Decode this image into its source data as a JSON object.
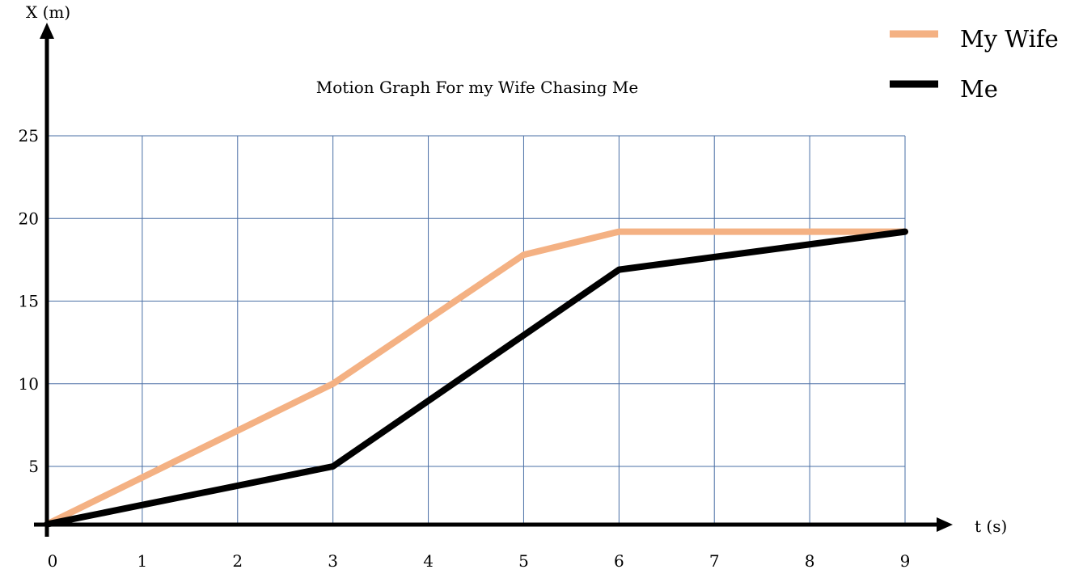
{
  "chart_data": {
    "type": "line",
    "title": "Motion Graph For my Wife Chasing Me",
    "xlabel": "t (s)",
    "ylabel": "X (m)",
    "x_ticks": [
      0,
      1,
      2,
      3,
      4,
      5,
      6,
      7,
      8,
      9
    ],
    "y_ticks": [
      5,
      10,
      15,
      20,
      25
    ],
    "xlim": [
      0,
      9
    ],
    "ylim": [
      1.5,
      25
    ],
    "grid": true,
    "legend_position": "top-right",
    "series": [
      {
        "name": "My Wife",
        "color": "#f4b183",
        "x": [
          0,
          3,
          5,
          6,
          9
        ],
        "y": [
          1.5,
          10,
          17.8,
          19.2,
          19.2
        ]
      },
      {
        "name": "Me",
        "color": "#000000",
        "x": [
          0,
          3,
          6,
          9
        ],
        "y": [
          1.5,
          5,
          16.9,
          19.2
        ]
      }
    ]
  }
}
